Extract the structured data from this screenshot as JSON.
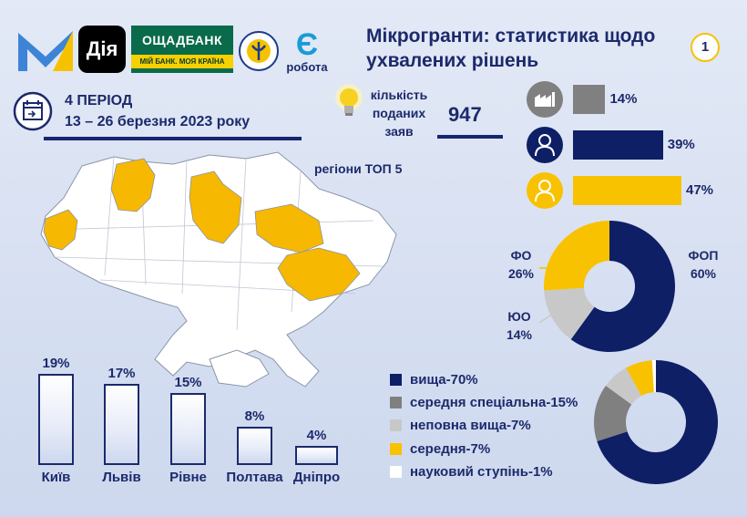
{
  "header": {
    "logos": {
      "diia": "Дія",
      "oschadbank": "ОЩАДБАНК",
      "oschadbank_slogan": "МІЙ БАНК. МОЯ КРАЇНА",
      "robota_letter": "Є",
      "robota": "робота"
    },
    "title": "Мікрогранти: статистика щодо ухвалених рішень",
    "page_number": "1"
  },
  "period": {
    "label": "4 ПЕРІОД",
    "dates": "13  – 26 березня 2023 року",
    "icon": "calendar-icon"
  },
  "applications": {
    "label": "кількість поданих заяв",
    "value": "947",
    "icon": "lightbulb-icon"
  },
  "map": {
    "title": "регіони ТОП 5",
    "highlight_color": "#f6b800"
  },
  "colors": {
    "navy": "#0e1f66",
    "yellow": "#f8c200",
    "gray": "#808080",
    "light_gray": "#c8c8c8",
    "white": "#ffffff"
  },
  "chart_data": [
    {
      "type": "bar",
      "orientation": "horizontal",
      "categories": [
        "legal-entity-icon",
        "man-icon",
        "woman-icon"
      ],
      "values": [
        14,
        39,
        47
      ],
      "labels": [
        "14%",
        "39%",
        "47%"
      ],
      "colors": [
        "#808080",
        "#0e1f66",
        "#f8c200"
      ],
      "xlim": [
        0,
        47
      ]
    },
    {
      "type": "pie",
      "donut": true,
      "categories": [
        "ФОП",
        "ЮО",
        "ФО"
      ],
      "values": [
        60,
        14,
        26
      ],
      "labels": [
        "60%",
        "14%",
        "26%"
      ],
      "colors": [
        "#0e1f66",
        "#c8c8c8",
        "#f8c200"
      ]
    },
    {
      "type": "pie",
      "donut": true,
      "categories": [
        "вища-70%",
        "середня спеціальна-15%",
        "неповна вища-7%",
        "середня-7%",
        "науковий ступінь-1%"
      ],
      "values": [
        70,
        15,
        7,
        7,
        1
      ],
      "colors": [
        "#0e1f66",
        "#808080",
        "#c8c8c8",
        "#f8c200",
        "#ffffff"
      ]
    },
    {
      "type": "bar",
      "categories": [
        "Київ",
        "Львів",
        "Рівне",
        "Полтава",
        "Дніпро"
      ],
      "values": [
        19,
        17,
        15,
        8,
        4
      ],
      "labels": [
        "19%",
        "17%",
        "15%",
        "8%",
        "4%"
      ],
      "ylim": [
        0,
        19
      ]
    }
  ]
}
